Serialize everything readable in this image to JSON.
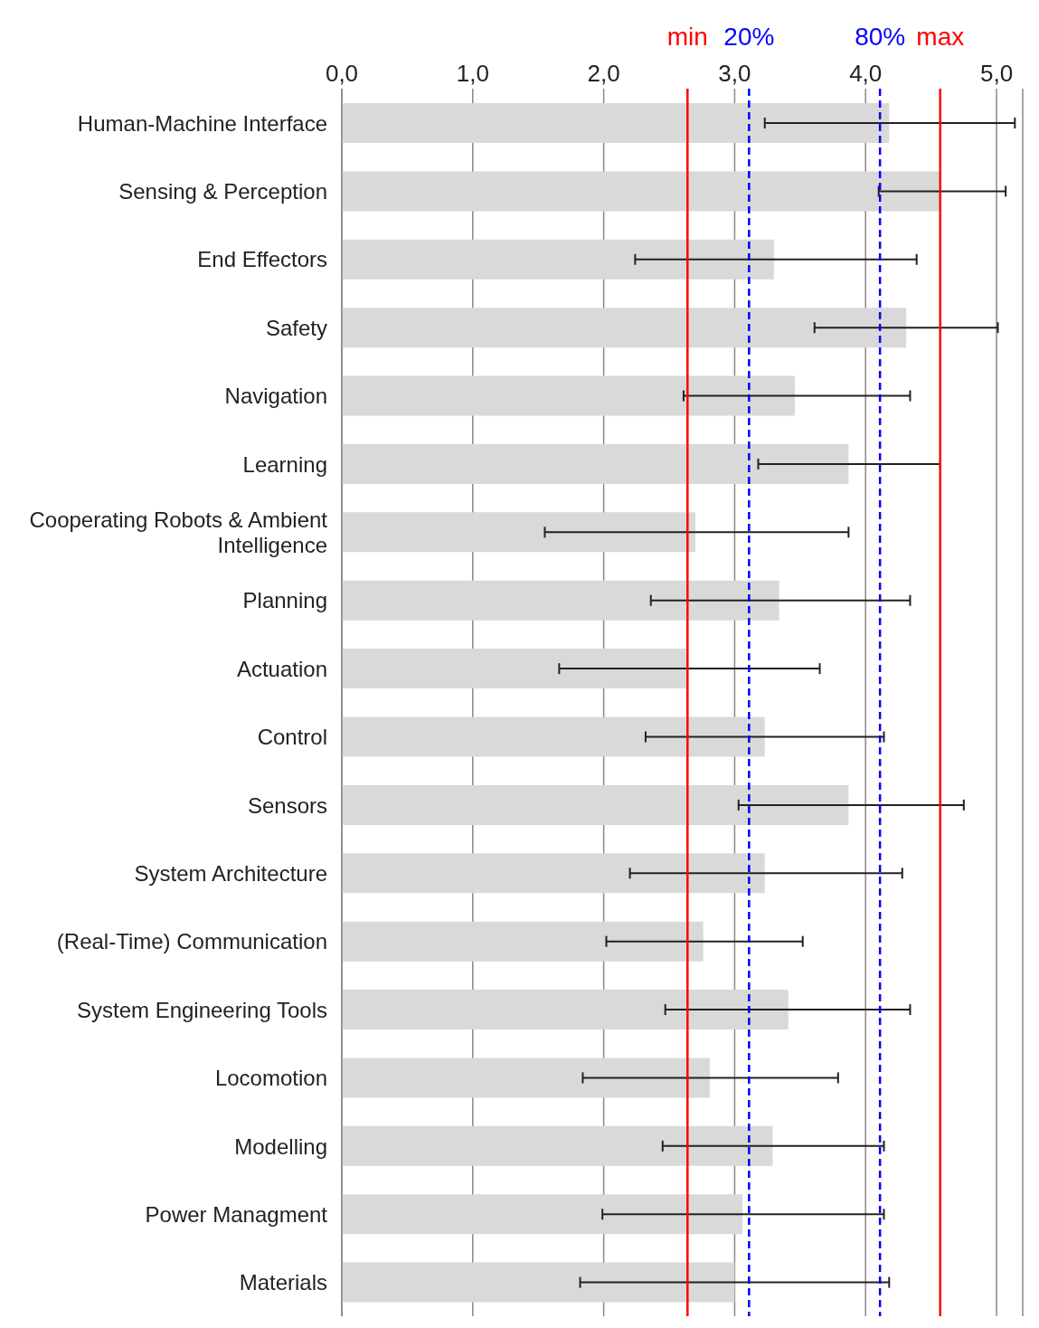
{
  "chart_data": {
    "type": "bar",
    "orientation": "horizontal",
    "categories": [
      "Human-Machine Interface",
      "Sensing & Perception",
      "End Effectors",
      "Safety",
      "Navigation",
      "Learning",
      "Cooperating Robots & Ambient Intelligence",
      "Planning",
      "Actuation",
      "Control",
      "Sensors",
      "System Architecture",
      "(Real-Time) Communication",
      "System Engineering Tools",
      "Locomotion",
      "Modelling",
      "Power Managment",
      "Materials"
    ],
    "values": [
      4.18,
      4.57,
      3.3,
      4.31,
      3.46,
      3.87,
      2.7,
      3.34,
      2.64,
      3.23,
      3.87,
      3.23,
      2.76,
      3.41,
      2.81,
      3.29,
      3.06,
      3.0
    ],
    "errors": [
      [
        3.23,
        5.14
      ],
      [
        4.1,
        5.07
      ],
      [
        2.24,
        4.39
      ],
      [
        3.61,
        5.01
      ],
      [
        2.61,
        4.34
      ],
      [
        3.18,
        4.57
      ],
      [
        1.55,
        3.87
      ],
      [
        2.36,
        4.34
      ],
      [
        1.66,
        3.65
      ],
      [
        2.32,
        4.14
      ],
      [
        3.03,
        4.75
      ],
      [
        2.2,
        4.28
      ],
      [
        2.02,
        3.52
      ],
      [
        2.47,
        4.34
      ],
      [
        1.84,
        3.79
      ],
      [
        2.45,
        4.14
      ],
      [
        1.99,
        4.14
      ],
      [
        1.82,
        4.18
      ]
    ],
    "color": "#d9d9d9",
    "xlim": [
      0,
      5.2
    ],
    "xticks": [
      {
        "value": 0,
        "label": "0,0"
      },
      {
        "value": 1,
        "label": "1,0"
      },
      {
        "value": 2,
        "label": "2,0"
      },
      {
        "value": 3,
        "label": "3,0"
      },
      {
        "value": 4,
        "label": "4,0"
      },
      {
        "value": 5,
        "label": "5,0"
      }
    ],
    "grid": "x",
    "ref_lines": [
      {
        "axis": "x",
        "value": 2.64,
        "label": "min",
        "color": "#ff0000",
        "line_style": "solid"
      },
      {
        "axis": "x",
        "value": 3.11,
        "color": "#0000ff",
        "line_style": "dashed"
      },
      {
        "axis": "x",
        "value": 4.11,
        "color": "#0000ff",
        "line_style": "dashed"
      },
      {
        "axis": "x",
        "value": 4.57,
        "label": "max",
        "color": "#ff0000",
        "line_style": "solid"
      }
    ],
    "annotations": [
      "20%",
      "80%"
    ]
  }
}
